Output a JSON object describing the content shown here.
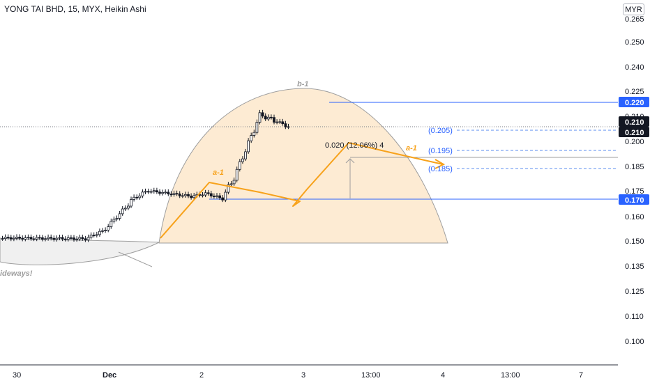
{
  "header": {
    "title": "YONG TAI BHD, 15, MYX, Heikin Ashi",
    "currency": "MYR"
  },
  "chart_data": {
    "type": "candlestick",
    "y_axis": {
      "ticks": [
        "0.265",
        "0.250",
        "0.240",
        "0.225",
        "0.210",
        "0.200",
        "0.185",
        "0.175",
        "0.160",
        "0.150",
        "0.135",
        "0.125",
        "0.110",
        "0.100"
      ],
      "range": [
        0.093,
        0.267
      ]
    },
    "x_axis": {
      "ticks": [
        "30",
        "Dec",
        "2",
        "3",
        "13:00",
        "4",
        "13:00",
        "7"
      ]
    },
    "price_labels": [
      {
        "value": "0.220",
        "style": "blue"
      },
      {
        "value": "0.210",
        "style": "dark"
      },
      {
        "value": "0.210",
        "style": "dark"
      },
      {
        "value": "0.170",
        "style": "blue"
      }
    ],
    "fib_labels": [
      "(0.205)",
      "(0.195)",
      "(0.185)"
    ],
    "annotations": {
      "cup_label": "b-1",
      "wave_label_1": "a-1",
      "wave_label_2": "a-1",
      "measure_text": "0.020 (12.06%) 4",
      "sideways_text": "ideways!"
    },
    "horizontal_lines": [
      0.22,
      0.17,
      0.1805
    ],
    "colors": {
      "up_candle": "#ffffff",
      "down_candle": "#131722",
      "zigzag": "#f7a21b",
      "level_line": "#2962ff",
      "cup_fill": "#fdebd3"
    }
  }
}
